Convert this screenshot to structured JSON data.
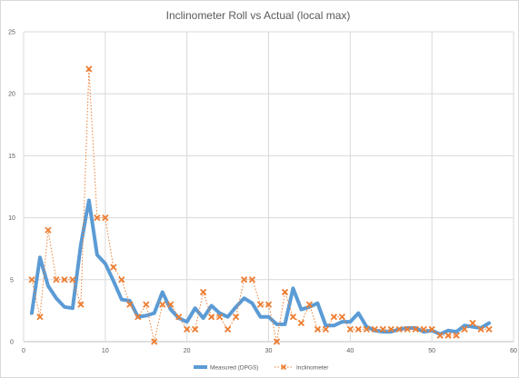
{
  "chart_data": {
    "type": "line",
    "title": "Inclinometer Roll vs Actual (local max)",
    "xlabel": "",
    "ylabel": "",
    "xlim": [
      0,
      60
    ],
    "ylim": [
      0,
      25
    ],
    "x_ticks": [
      "0",
      "10",
      "20",
      "30",
      "40",
      "50",
      "60"
    ],
    "y_ticks": [
      "0",
      "5",
      "10",
      "15",
      "20",
      "25"
    ],
    "grid": true,
    "legend_position": "bottom",
    "series": [
      {
        "name": "Measured (DPGS)",
        "color": "#5b9bd5",
        "style": "solid-thick",
        "x": [
          1,
          2,
          3,
          4,
          5,
          6,
          7,
          8,
          9,
          10,
          11,
          12,
          13,
          14,
          15,
          16,
          17,
          18,
          19,
          20,
          21,
          22,
          23,
          24,
          25,
          26,
          27,
          28,
          29,
          30,
          31,
          32,
          33,
          34,
          35,
          36,
          37,
          38,
          39,
          40,
          41,
          42,
          43,
          44,
          45,
          46,
          47,
          48,
          49,
          50,
          51,
          52,
          53,
          54,
          55,
          56,
          57
        ],
        "values": [
          2.3,
          6.8,
          4.5,
          3.5,
          2.8,
          2.7,
          7.8,
          11.4,
          7.0,
          6.3,
          4.9,
          3.4,
          3.3,
          2.0,
          2.1,
          2.3,
          4.0,
          2.6,
          1.9,
          1.6,
          2.7,
          1.9,
          2.9,
          2.3,
          2.0,
          2.8,
          3.5,
          3.1,
          2.0,
          2.0,
          1.4,
          1.4,
          4.3,
          2.6,
          2.8,
          3.1,
          1.3,
          1.3,
          1.6,
          1.6,
          2.3,
          1.2,
          0.9,
          0.8,
          0.8,
          1.0,
          1.1,
          1.1,
          0.8,
          0.9,
          0.6,
          0.9,
          0.8,
          1.3,
          1.2,
          1.1,
          1.5
        ]
      },
      {
        "name": "Inclinometer",
        "color": "#ed7d31",
        "style": "dotted-x-marker",
        "x": [
          1,
          2,
          3,
          4,
          5,
          6,
          7,
          8,
          9,
          10,
          11,
          12,
          13,
          14,
          15,
          16,
          17,
          18,
          19,
          20,
          21,
          22,
          23,
          24,
          25,
          26,
          27,
          28,
          29,
          30,
          31,
          32,
          33,
          34,
          35,
          36,
          37,
          38,
          39,
          40,
          41,
          42,
          43,
          44,
          45,
          46,
          47,
          48,
          49,
          50,
          51,
          52,
          53,
          54,
          55,
          56,
          57
        ],
        "values": [
          5,
          2,
          9,
          5,
          5,
          5,
          3,
          22,
          10,
          10,
          6,
          5,
          3,
          2,
          3,
          0,
          3,
          3,
          2,
          1,
          1,
          4,
          2,
          2,
          1,
          2,
          5,
          5,
          3,
          3,
          0,
          4,
          2,
          1.5,
          3,
          1,
          1,
          2,
          2,
          1,
          1,
          1,
          1,
          1,
          1,
          1,
          1,
          1,
          1,
          1,
          0.5,
          0.5,
          0.5,
          1,
          1.5,
          1,
          1
        ]
      }
    ]
  }
}
